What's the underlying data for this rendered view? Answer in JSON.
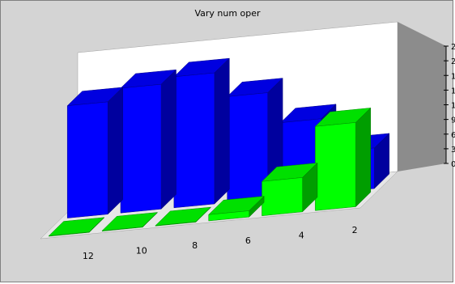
{
  "chart_data": {
    "type": "bar",
    "style": "3d-clustered-depth",
    "title": "Vary num oper",
    "xlabel": "",
    "ylabel": "",
    "categories": [
      "12",
      "10",
      "8",
      "6",
      "4",
      "2"
    ],
    "ylim": [
      0,
      240
    ],
    "yticks": [
      "0.0",
      "30.0",
      "60.0",
      "90.0",
      "120.0",
      "150.0",
      "180.0",
      "210.0",
      "240.0"
    ],
    "grid": false,
    "legend": "none",
    "series": [
      {
        "color": "#0000ff",
        "values": [
          180,
          200,
          210,
          170,
          120,
          65
        ]
      },
      {
        "color": "#00ff00",
        "values": [
          0,
          0,
          0,
          10,
          55,
          135
        ]
      }
    ]
  }
}
